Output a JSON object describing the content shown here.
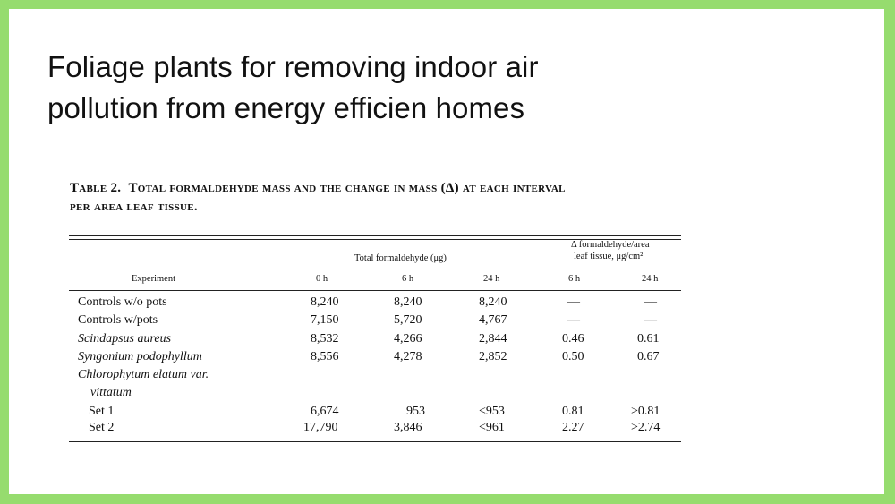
{
  "title": {
    "line1": "Foliage plants for removing indoor air",
    "line2": "pollution from  energy efficien homes"
  },
  "table": {
    "label": "Table 2.",
    "caption_line1": "Total formaldehyde mass and the change in mass (Δ) at each interval",
    "caption_line2": "per area leaf tissue.",
    "header": {
      "experiment": "Experiment",
      "group1": "Total formaldehyde (μg)",
      "group2_line1": "Δ formaldehyde/area",
      "group2_line2": "leaf tissue, μg/cm²",
      "cols": [
        "0 h",
        "6 h",
        "24 h",
        "6 h",
        "24 h"
      ]
    },
    "rows": [
      {
        "name": "Controls w/o pots",
        "v": [
          "8,240",
          "8,240",
          "8,240",
          "—",
          "—"
        ]
      },
      {
        "name": "Controls w/pots",
        "v": [
          "7,150",
          "5,720",
          "4,767",
          "—",
          "—"
        ]
      },
      {
        "name": "Scindapsus aureus",
        "v": [
          "8,532",
          "4,266",
          "2,844",
          "0.46",
          "0.61"
        ]
      },
      {
        "name": "Syngonium podophyllum",
        "v": [
          "8,556",
          "4,278",
          "2,852",
          "0.50",
          "0.67"
        ]
      },
      {
        "name": "Chlorophytum elatum var.",
        "name2": "vittatum"
      },
      {
        "name": "Set 1",
        "v": [
          "6,674",
          "953",
          "<953",
          "0.81",
          ">0.81"
        ]
      },
      {
        "name": "Set 2",
        "v": [
          "17,790",
          "3,846",
          "<961",
          "2.27",
          ">2.74"
        ]
      }
    ]
  }
}
